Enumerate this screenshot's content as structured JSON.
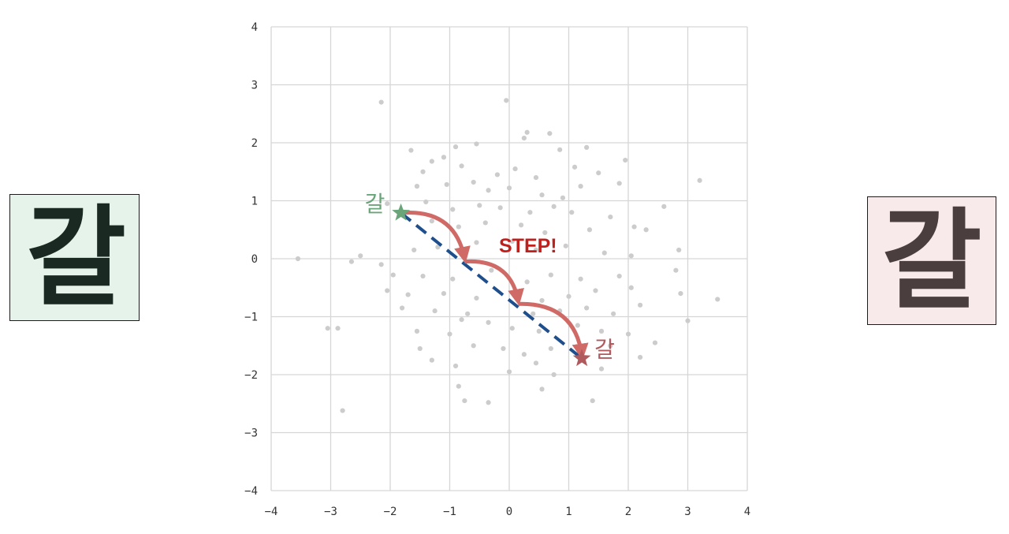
{
  "left_glyph": {
    "text": "갈",
    "background": "#e5f3ea",
    "color": "#1a2a22"
  },
  "right_glyph": {
    "text": "갈",
    "background": "#f8eaea",
    "color": "#4a3e3e"
  },
  "chart_data": {
    "type": "scatter",
    "xlim": [
      -4,
      4
    ],
    "ylim": [
      -4,
      4
    ],
    "x_ticks": [
      "−4",
      "−3",
      "−2",
      "−1",
      "0",
      "1",
      "2",
      "3",
      "4"
    ],
    "y_ticks": [
      "4",
      "3",
      "2",
      "1",
      "0",
      "−1",
      "−2",
      "−3",
      "−4"
    ],
    "grid": true,
    "point_color": "#cccccc",
    "path_color": "#1f4e8c",
    "arrow_color": "#d06a66",
    "start": {
      "x": -1.82,
      "y": 0.79,
      "label": "갈",
      "color": "#6aa57a"
    },
    "end": {
      "x": 1.22,
      "y": -1.72,
      "label": "갈",
      "color": "#b05a5e"
    },
    "step_waypoints": [
      {
        "x": -1.82,
        "y": 0.79
      },
      {
        "x": -0.75,
        "y": -0.05
      },
      {
        "x": 0.15,
        "y": -0.78
      },
      {
        "x": 1.22,
        "y": -1.72
      }
    ],
    "annotation": "STEP!",
    "points": [
      [
        -2.15,
        2.7
      ],
      [
        -0.05,
        2.73
      ],
      [
        0.3,
        2.18
      ],
      [
        0.68,
        2.16
      ],
      [
        0.25,
        2.08
      ],
      [
        -1.65,
        1.87
      ],
      [
        -0.9,
        1.93
      ],
      [
        -0.55,
        1.98
      ],
      [
        0.85,
        1.88
      ],
      [
        1.3,
        1.92
      ],
      [
        -1.1,
        1.75
      ],
      [
        -0.8,
        1.6
      ],
      [
        -1.3,
        1.68
      ],
      [
        -1.45,
        1.5
      ],
      [
        -0.2,
        1.45
      ],
      [
        0.1,
        1.55
      ],
      [
        0.45,
        1.4
      ],
      [
        1.1,
        1.58
      ],
      [
        1.5,
        1.48
      ],
      [
        1.95,
        1.7
      ],
      [
        3.2,
        1.35
      ],
      [
        -1.55,
        1.25
      ],
      [
        -1.05,
        1.28
      ],
      [
        -0.6,
        1.32
      ],
      [
        -0.35,
        1.18
      ],
      [
        0.0,
        1.22
      ],
      [
        0.55,
        1.1
      ],
      [
        0.9,
        1.05
      ],
      [
        1.2,
        1.25
      ],
      [
        1.85,
        1.3
      ],
      [
        -2.05,
        0.95
      ],
      [
        -1.4,
        0.98
      ],
      [
        -0.95,
        0.85
      ],
      [
        -0.5,
        0.92
      ],
      [
        -0.15,
        0.88
      ],
      [
        0.35,
        0.8
      ],
      [
        0.75,
        0.9
      ],
      [
        1.05,
        0.8
      ],
      [
        1.7,
        0.72
      ],
      [
        2.6,
        0.9
      ],
      [
        -1.3,
        0.65
      ],
      [
        -0.85,
        0.55
      ],
      [
        -0.4,
        0.62
      ],
      [
        0.2,
        0.58
      ],
      [
        0.6,
        0.45
      ],
      [
        1.35,
        0.5
      ],
      [
        2.1,
        0.55
      ],
      [
        2.3,
        0.5
      ],
      [
        -2.5,
        0.05
      ],
      [
        -2.65,
        -0.05
      ],
      [
        -3.55,
        0.0
      ],
      [
        -2.15,
        -0.1
      ],
      [
        -1.6,
        0.15
      ],
      [
        -1.2,
        0.2
      ],
      [
        -0.55,
        0.28
      ],
      [
        0.05,
        0.3
      ],
      [
        0.45,
        0.15
      ],
      [
        0.95,
        0.22
      ],
      [
        1.6,
        0.1
      ],
      [
        2.05,
        0.05
      ],
      [
        2.85,
        0.15
      ],
      [
        -1.95,
        -0.28
      ],
      [
        -1.45,
        -0.3
      ],
      [
        -0.95,
        -0.35
      ],
      [
        -0.3,
        -0.2
      ],
      [
        0.3,
        -0.4
      ],
      [
        0.7,
        -0.28
      ],
      [
        1.2,
        -0.35
      ],
      [
        1.85,
        -0.3
      ],
      [
        2.8,
        -0.2
      ],
      [
        -2.05,
        -0.55
      ],
      [
        -1.7,
        -0.62
      ],
      [
        -1.1,
        -0.6
      ],
      [
        -0.55,
        -0.68
      ],
      [
        0.55,
        -0.72
      ],
      [
        1.0,
        -0.65
      ],
      [
        1.45,
        -0.55
      ],
      [
        2.05,
        -0.5
      ],
      [
        2.88,
        -0.6
      ],
      [
        3.5,
        -0.7
      ],
      [
        -1.8,
        -0.85
      ],
      [
        -1.25,
        -0.9
      ],
      [
        -0.7,
        -0.95
      ],
      [
        0.4,
        -0.95
      ],
      [
        0.85,
        -0.9
      ],
      [
        1.3,
        -0.85
      ],
      [
        1.75,
        -0.95
      ],
      [
        2.2,
        -0.8
      ],
      [
        3.0,
        -1.07
      ],
      [
        -3.05,
        -1.2
      ],
      [
        -2.88,
        -1.2
      ],
      [
        -1.55,
        -1.25
      ],
      [
        -1.0,
        -1.3
      ],
      [
        -0.35,
        -1.1
      ],
      [
        0.05,
        -1.2
      ],
      [
        0.5,
        -1.25
      ],
      [
        1.55,
        -1.25
      ],
      [
        2.0,
        -1.3
      ],
      [
        2.45,
        -1.45
      ],
      [
        -1.5,
        -1.55
      ],
      [
        -0.6,
        -1.5
      ],
      [
        -0.1,
        -1.55
      ],
      [
        0.25,
        -1.65
      ],
      [
        0.7,
        -1.55
      ],
      [
        1.7,
        -1.5
      ],
      [
        2.2,
        -1.7
      ],
      [
        -1.3,
        -1.75
      ],
      [
        -0.9,
        -1.85
      ],
      [
        0.0,
        -1.95
      ],
      [
        0.75,
        -2.0
      ],
      [
        1.55,
        -1.9
      ],
      [
        -0.85,
        -2.2
      ],
      [
        0.55,
        -2.25
      ],
      [
        -0.75,
        -2.45
      ],
      [
        -0.35,
        -2.48
      ],
      [
        1.4,
        -2.45
      ],
      [
        -2.8,
        -2.62
      ],
      [
        -0.8,
        -1.05
      ],
      [
        0.45,
        -1.8
      ],
      [
        1.15,
        -1.15
      ]
    ]
  }
}
